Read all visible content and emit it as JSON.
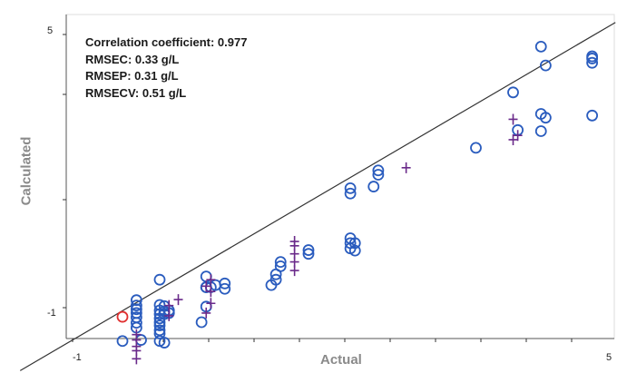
{
  "chart_data": {
    "type": "scatter",
    "title": "",
    "xlabel": "Actual",
    "ylabel": "Calculated",
    "xlim": [
      -1,
      5
    ],
    "ylim": [
      -1,
      5
    ],
    "x_tick_labels": [
      "-1",
      "5"
    ],
    "y_tick_labels": [
      "5",
      "-1"
    ],
    "annotations": [
      "Correlation coefficient: 0.977",
      "RMSEC: 0.33 g/L",
      "RMSEP: 0.31 g/L",
      "RMSECV: 0.51 g/L"
    ],
    "fit_line": {
      "x": [
        -1.1,
        5.3
      ],
      "y": [
        -1.17,
        5.3
      ]
    },
    "series": [
      {
        "marker": "circle",
        "color": "#2a5cbe",
        "points": [
          [
            0.0,
            -0.62
          ],
          [
            0.15,
            -0.37
          ],
          [
            0.15,
            -0.28
          ],
          [
            0.15,
            -0.18
          ],
          [
            0.15,
            -0.1
          ],
          [
            0.15,
            -0.03
          ],
          [
            0.15,
            0.04
          ],
          [
            0.15,
            0.14
          ],
          [
            0.2,
            -0.6
          ],
          [
            0.4,
            -0.62
          ],
          [
            0.4,
            -0.48
          ],
          [
            0.4,
            -0.42
          ],
          [
            0.4,
            -0.33
          ],
          [
            0.4,
            -0.27
          ],
          [
            0.4,
            -0.2
          ],
          [
            0.4,
            -0.12
          ],
          [
            0.4,
            -0.05
          ],
          [
            0.4,
            0.05
          ],
          [
            0.4,
            0.52
          ],
          [
            0.45,
            -0.12
          ],
          [
            0.45,
            -0.07
          ],
          [
            0.45,
            0.03
          ],
          [
            0.5,
            -0.05
          ],
          [
            0.5,
            -0.1
          ],
          [
            0.45,
            -0.65
          ],
          [
            0.9,
            0.58
          ],
          [
            0.9,
            0.38
          ],
          [
            0.9,
            0.02
          ],
          [
            0.85,
            -0.27
          ],
          [
            0.9,
            0.38
          ],
          [
            0.95,
            0.38
          ],
          [
            1.0,
            0.42
          ],
          [
            1.1,
            0.45
          ],
          [
            1.1,
            0.35
          ],
          [
            1.6,
            0.42
          ],
          [
            1.65,
            0.52
          ],
          [
            1.65,
            0.62
          ],
          [
            1.7,
            0.77
          ],
          [
            1.7,
            0.85
          ],
          [
            2.0,
            1.0
          ],
          [
            2.0,
            1.07
          ],
          [
            2.45,
            1.1
          ],
          [
            2.45,
            1.2
          ],
          [
            2.45,
            1.29
          ],
          [
            2.5,
            1.06
          ],
          [
            2.5,
            1.2
          ],
          [
            2.45,
            2.12
          ],
          [
            2.45,
            2.22
          ],
          [
            2.7,
            2.25
          ],
          [
            2.75,
            2.47
          ],
          [
            2.75,
            2.55
          ],
          [
            3.8,
            2.97
          ],
          [
            4.2,
            4.0
          ],
          [
            4.25,
            3.3
          ],
          [
            4.5,
            3.28
          ],
          [
            4.5,
            3.6
          ],
          [
            4.55,
            3.53
          ],
          [
            4.55,
            4.5
          ],
          [
            4.5,
            4.85
          ],
          [
            5.05,
            4.55
          ],
          [
            5.05,
            4.67
          ],
          [
            5.05,
            4.63
          ],
          [
            5.05,
            3.57
          ]
        ]
      },
      {
        "marker": "circle",
        "color": "#e03030",
        "points": [
          [
            0.0,
            -0.17
          ]
        ]
      },
      {
        "marker": "plus",
        "color": "#6a2a8a",
        "points": [
          [
            0.15,
            -0.5
          ],
          [
            0.15,
            -0.6
          ],
          [
            0.15,
            -0.72
          ],
          [
            0.15,
            -0.8
          ],
          [
            0.15,
            -0.95
          ],
          [
            0.5,
            -0.15
          ],
          [
            0.5,
            0.04
          ],
          [
            0.6,
            0.15
          ],
          [
            0.9,
            -0.1
          ],
          [
            0.95,
            0.08
          ],
          [
            0.95,
            0.3
          ],
          [
            0.9,
            0.4
          ],
          [
            0.95,
            0.52
          ],
          [
            1.85,
            0.69
          ],
          [
            1.85,
            0.85
          ],
          [
            1.85,
            1.0
          ],
          [
            1.85,
            1.15
          ],
          [
            1.85,
            1.23
          ],
          [
            3.05,
            2.6
          ],
          [
            4.2,
            3.5
          ],
          [
            4.2,
            3.12
          ],
          [
            4.25,
            3.2
          ]
        ]
      }
    ]
  }
}
